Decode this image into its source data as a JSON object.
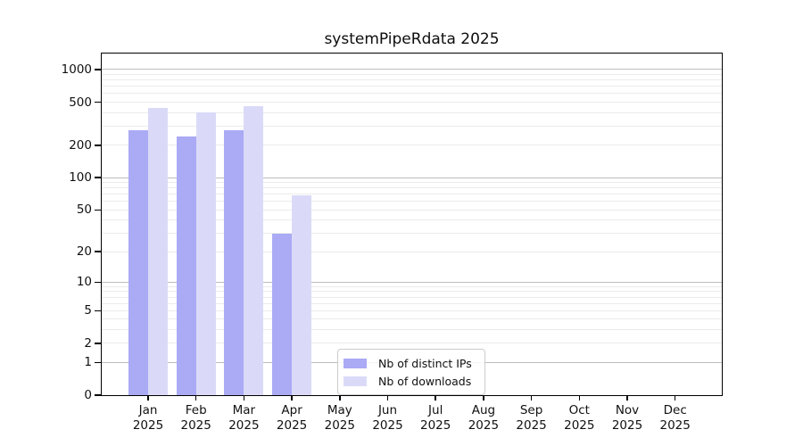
{
  "chart_data": {
    "type": "bar",
    "title": "systemPipeRdata 2025",
    "months": [
      "Jan",
      "Feb",
      "Mar",
      "Apr",
      "May",
      "Jun",
      "Jul",
      "Aug",
      "Sep",
      "Oct",
      "Nov",
      "Dec"
    ],
    "year_label": "2025",
    "series": [
      {
        "name": "Nb of distinct IPs",
        "color": "#aaaaf5",
        "values": [
          275,
          240,
          275,
          30,
          0,
          0,
          0,
          0,
          0,
          0,
          0,
          0
        ]
      },
      {
        "name": "Nb of downloads",
        "color": "#dadaf8",
        "values": [
          445,
          400,
          460,
          68,
          0,
          0,
          0,
          0,
          0,
          0,
          0,
          0
        ]
      }
    ],
    "y_axis": {
      "scale": "log10(1+v)",
      "ticks": [
        1000,
        500,
        200,
        100,
        50,
        20,
        10,
        5,
        2,
        1,
        0
      ],
      "range": [
        0,
        1435
      ],
      "major_grid_values": [
        1,
        10,
        100,
        1000
      ],
      "minor_grid_values": [
        2,
        3,
        4,
        5,
        6,
        7,
        8,
        9,
        20,
        30,
        40,
        50,
        60,
        70,
        80,
        90,
        200,
        300,
        400,
        500,
        600,
        700,
        800,
        900
      ]
    },
    "x_axis": {
      "label_lines": 2
    },
    "legend_position": "inside-bottom-center",
    "grid": true
  },
  "colors": {
    "distinct_ips_bar": "#aaaaf5",
    "downloads_bar": "#dadaf8",
    "major_grid": "#bdbdbd",
    "minor_grid": "#ebebeb",
    "axis_spine": "#000000"
  }
}
